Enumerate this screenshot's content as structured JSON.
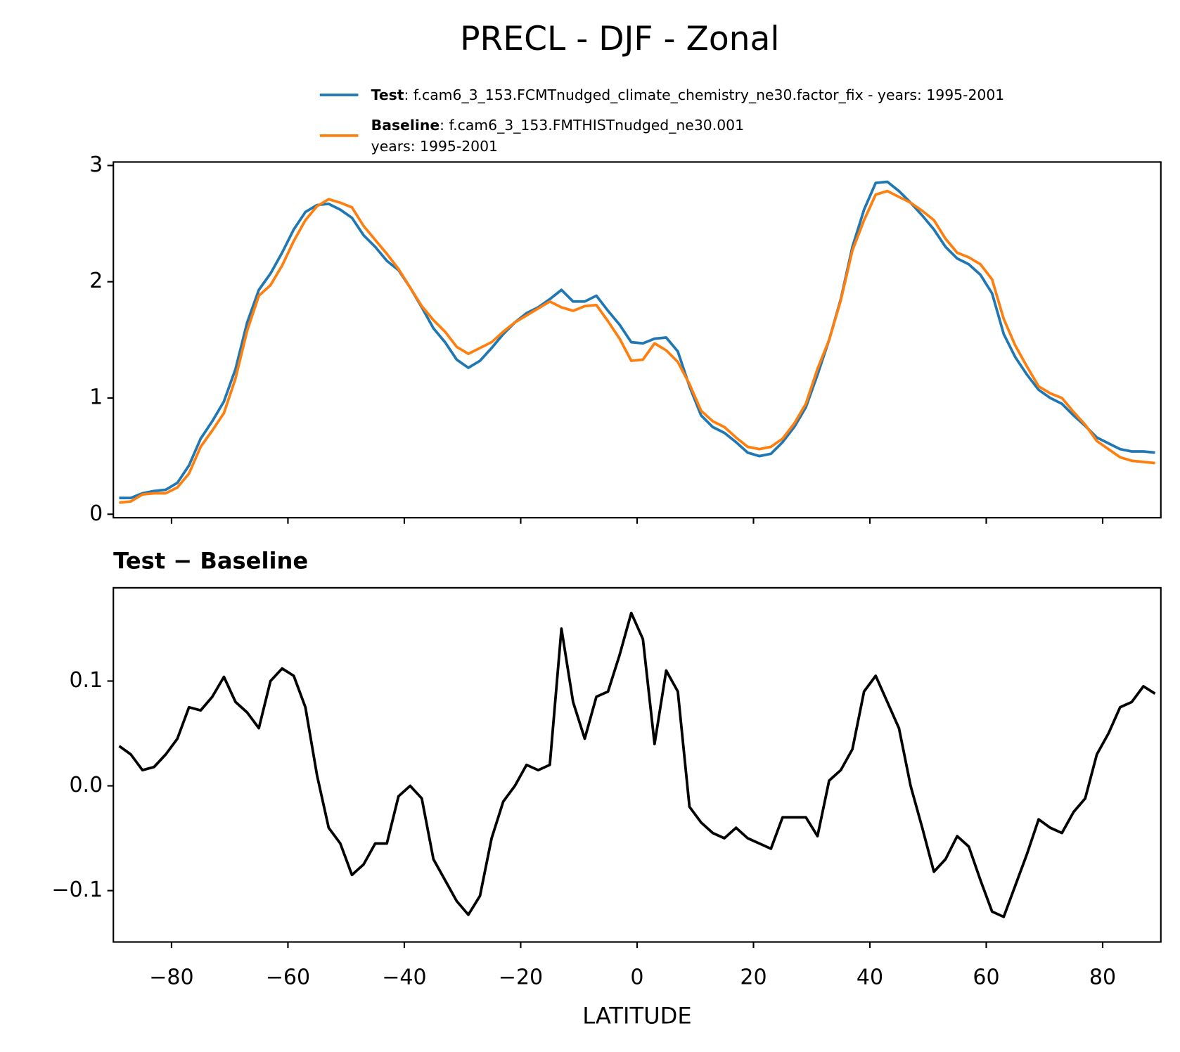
{
  "title": "PRECL - DJF - Zonal",
  "chart_data": [
    {
      "type": "line",
      "x": [
        -89,
        -87,
        -85,
        -83,
        -81,
        -79,
        -77,
        -75,
        -73,
        -71,
        -69,
        -67,
        -65,
        -63,
        -61,
        -59,
        -57,
        -55,
        -53,
        -51,
        -49,
        -47,
        -45,
        -43,
        -41,
        -39,
        -37,
        -35,
        -33,
        -31,
        -29,
        -27,
        -25,
        -23,
        -21,
        -19,
        -17,
        -15,
        -13,
        -11,
        -9,
        -7,
        -5,
        -3,
        -1,
        1,
        3,
        5,
        7,
        9,
        11,
        13,
        15,
        17,
        19,
        21,
        23,
        25,
        27,
        29,
        31,
        33,
        35,
        37,
        39,
        41,
        43,
        45,
        47,
        49,
        51,
        53,
        55,
        57,
        59,
        61,
        63,
        65,
        67,
        69,
        71,
        73,
        75,
        77,
        79,
        81,
        83,
        85,
        87,
        89
      ],
      "series": [
        {
          "name": "Test",
          "legend_text": ": f.cam6_3_153.FCMTnudged_climate_chemistry_ne30.factor_fix - years: 1995-2001",
          "color": "#1f77b4",
          "values": [
            0.14,
            0.14,
            0.18,
            0.2,
            0.21,
            0.27,
            0.42,
            0.65,
            0.8,
            0.97,
            1.25,
            1.65,
            1.93,
            2.07,
            2.25,
            2.45,
            2.6,
            2.66,
            2.67,
            2.62,
            2.55,
            2.4,
            2.3,
            2.18,
            2.1,
            1.95,
            1.78,
            1.6,
            1.48,
            1.33,
            1.26,
            1.32,
            1.43,
            1.55,
            1.65,
            1.73,
            1.78,
            1.85,
            1.93,
            1.83,
            1.83,
            1.88,
            1.75,
            1.63,
            1.48,
            1.47,
            1.51,
            1.52,
            1.4,
            1.1,
            0.85,
            0.75,
            0.7,
            0.62,
            0.53,
            0.5,
            0.52,
            0.62,
            0.75,
            0.92,
            1.2,
            1.5,
            1.85,
            2.3,
            2.62,
            2.85,
            2.86,
            2.78,
            2.68,
            2.57,
            2.45,
            2.3,
            2.2,
            2.15,
            2.06,
            1.9,
            1.55,
            1.35,
            1.2,
            1.07,
            1.0,
            0.95,
            0.85,
            0.76,
            0.66,
            0.61,
            0.56,
            0.54,
            0.54,
            0.53
          ]
        },
        {
          "name": "Baseline",
          "legend_text": ": f.cam6_3_153.FMTHISTnudged_ne30.001",
          "legend_text_2": "years: 1995-2001",
          "color": "#ff7f0e",
          "values": [
            0.1,
            0.11,
            0.17,
            0.18,
            0.18,
            0.23,
            0.35,
            0.58,
            0.72,
            0.87,
            1.17,
            1.58,
            1.88,
            1.97,
            2.14,
            2.35,
            2.53,
            2.65,
            2.71,
            2.68,
            2.64,
            2.48,
            2.36,
            2.24,
            2.11,
            1.95,
            1.79,
            1.67,
            1.57,
            1.44,
            1.38,
            1.43,
            1.48,
            1.57,
            1.65,
            1.71,
            1.77,
            1.83,
            1.78,
            1.75,
            1.79,
            1.8,
            1.66,
            1.51,
            1.32,
            1.33,
            1.47,
            1.41,
            1.31,
            1.12,
            0.89,
            0.8,
            0.75,
            0.66,
            0.58,
            0.56,
            0.58,
            0.65,
            0.78,
            0.95,
            1.25,
            1.5,
            1.84,
            2.27,
            2.53,
            2.75,
            2.78,
            2.73,
            2.68,
            2.61,
            2.53,
            2.37,
            2.25,
            2.21,
            2.15,
            2.02,
            1.68,
            1.45,
            1.27,
            1.1,
            1.04,
            1.0,
            0.88,
            0.77,
            0.63,
            0.56,
            0.49,
            0.46,
            0.45,
            0.44
          ]
        }
      ],
      "xlim": [
        -90,
        90
      ],
      "xticks": [
        -80,
        -60,
        -40,
        -20,
        0,
        20,
        40,
        60,
        80
      ],
      "ylim": [
        -0.03,
        3.03
      ],
      "yticks": [
        0,
        1,
        2,
        3
      ]
    },
    {
      "type": "line",
      "title": "Test − Baseline",
      "xlabel": "LATITUDE",
      "x": [
        -89,
        -87,
        -85,
        -83,
        -81,
        -79,
        -77,
        -75,
        -73,
        -71,
        -69,
        -67,
        -65,
        -63,
        -61,
        -59,
        -57,
        -55,
        -53,
        -51,
        -49,
        -47,
        -45,
        -43,
        -41,
        -39,
        -37,
        -35,
        -33,
        -31,
        -29,
        -27,
        -25,
        -23,
        -21,
        -19,
        -17,
        -15,
        -13,
        -11,
        -9,
        -7,
        -5,
        -3,
        -1,
        1,
        3,
        5,
        7,
        9,
        11,
        13,
        15,
        17,
        19,
        21,
        23,
        25,
        27,
        29,
        31,
        33,
        35,
        37,
        39,
        41,
        43,
        45,
        47,
        49,
        51,
        53,
        55,
        57,
        59,
        61,
        63,
        65,
        67,
        69,
        71,
        73,
        75,
        77,
        79,
        81,
        83,
        85,
        87,
        89
      ],
      "series": [
        {
          "name": "Test − Baseline",
          "color": "#000000",
          "values": [
            0.038,
            0.03,
            0.015,
            0.018,
            0.03,
            0.045,
            0.075,
            0.072,
            0.085,
            0.104,
            0.08,
            0.07,
            0.055,
            0.1,
            0.112,
            0.105,
            0.075,
            0.01,
            -0.04,
            -0.055,
            -0.085,
            -0.075,
            -0.055,
            -0.055,
            -0.01,
            0.0,
            -0.012,
            -0.07,
            -0.09,
            -0.11,
            -0.123,
            -0.105,
            -0.05,
            -0.015,
            0.0,
            0.02,
            0.015,
            0.02,
            0.15,
            0.08,
            0.045,
            0.085,
            0.09,
            0.125,
            0.165,
            0.14,
            0.04,
            0.11,
            0.09,
            -0.02,
            -0.035,
            -0.045,
            -0.05,
            -0.04,
            -0.05,
            -0.055,
            -0.06,
            -0.03,
            -0.03,
            -0.03,
            -0.048,
            0.005,
            0.015,
            0.035,
            0.09,
            0.105,
            0.08,
            0.055,
            0.0,
            -0.04,
            -0.082,
            -0.07,
            -0.048,
            -0.058,
            -0.09,
            -0.12,
            -0.125,
            -0.095,
            -0.065,
            -0.032,
            -0.04,
            -0.045,
            -0.025,
            -0.012,
            0.03,
            0.05,
            0.075,
            0.08,
            0.095,
            0.088
          ]
        }
      ],
      "xlim": [
        -90,
        90
      ],
      "xticks": [
        {
          "value": -80,
          "label": "−80"
        },
        {
          "value": -60,
          "label": "−60"
        },
        {
          "value": -40,
          "label": "−40"
        },
        {
          "value": -20,
          "label": "−20"
        },
        0,
        20,
        40,
        60,
        80
      ],
      "ylim": [
        -0.149,
        0.189
      ],
      "yticks": [
        {
          "value": -0.1,
          "label": "−0.1"
        },
        {
          "value": 0,
          "label": "0.0"
        },
        0.1
      ]
    }
  ]
}
